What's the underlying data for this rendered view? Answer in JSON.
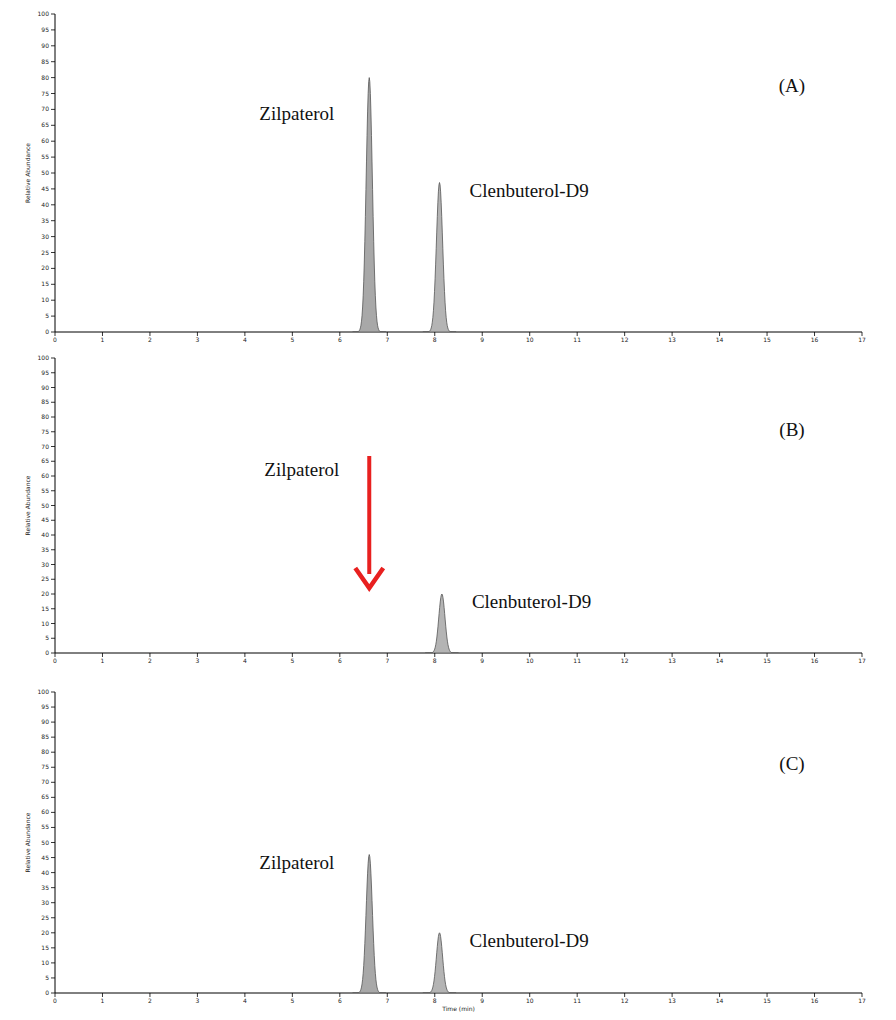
{
  "chart_data": [
    {
      "type": "chromatogram",
      "panel": "(A)",
      "ylabel": "Relative Abundance",
      "xlim": [
        0,
        17
      ],
      "xticks": [
        0,
        1,
        2,
        3,
        4,
        5,
        6,
        7,
        8,
        9,
        10,
        11,
        12,
        13,
        14,
        15,
        16,
        17
      ],
      "ylim": [
        0,
        100
      ],
      "yticks": [
        0,
        5,
        10,
        15,
        20,
        25,
        30,
        35,
        40,
        45,
        50,
        55,
        60,
        65,
        70,
        75,
        80,
        85,
        90,
        95,
        100
      ],
      "peaks": [
        {
          "name": "Zilpaterol",
          "rt": 6.62,
          "height": 80,
          "color": "#a8a8a8"
        },
        {
          "name": "Clenbuterol-D9",
          "rt": 8.1,
          "height": 47,
          "color": "#b4b4b4"
        }
      ]
    },
    {
      "type": "chromatogram",
      "panel": "(B)",
      "ylabel": "Relative Abundance",
      "xlim": [
        0,
        17
      ],
      "xticks": [
        0,
        1,
        2,
        3,
        4,
        5,
        6,
        7,
        8,
        9,
        10,
        11,
        12,
        13,
        14,
        15,
        16,
        17
      ],
      "ylim": [
        0,
        100
      ],
      "yticks": [
        0,
        5,
        10,
        15,
        20,
        25,
        30,
        35,
        40,
        45,
        50,
        55,
        60,
        65,
        70,
        75,
        80,
        85,
        90,
        95,
        100
      ],
      "peaks": [
        {
          "name": "Clenbuterol-D9",
          "rt": 8.15,
          "height": 20,
          "color": "#b4b4b4"
        }
      ],
      "annotations": [
        {
          "text": "Zilpaterol",
          "x": 6.62,
          "color": "#e8201f"
        }
      ]
    },
    {
      "type": "chromatogram",
      "panel": "(C)",
      "ylabel": "Relative Abundance",
      "xlabel": "Time (min)",
      "xlim": [
        0,
        17
      ],
      "xticks": [
        0,
        1,
        2,
        3,
        4,
        5,
        6,
        7,
        8,
        9,
        10,
        11,
        12,
        13,
        14,
        15,
        16,
        17
      ],
      "ylim": [
        0,
        100
      ],
      "yticks": [
        0,
        5,
        10,
        15,
        20,
        25,
        30,
        35,
        40,
        45,
        50,
        55,
        60,
        65,
        70,
        75,
        80,
        85,
        90,
        95,
        100
      ],
      "peaks": [
        {
          "name": "Zilpaterol",
          "rt": 6.62,
          "height": 46,
          "color": "#a8a8a8"
        },
        {
          "name": "Clenbuterol-D9",
          "rt": 8.1,
          "height": 20,
          "color": "#b4b4b4"
        }
      ]
    }
  ]
}
